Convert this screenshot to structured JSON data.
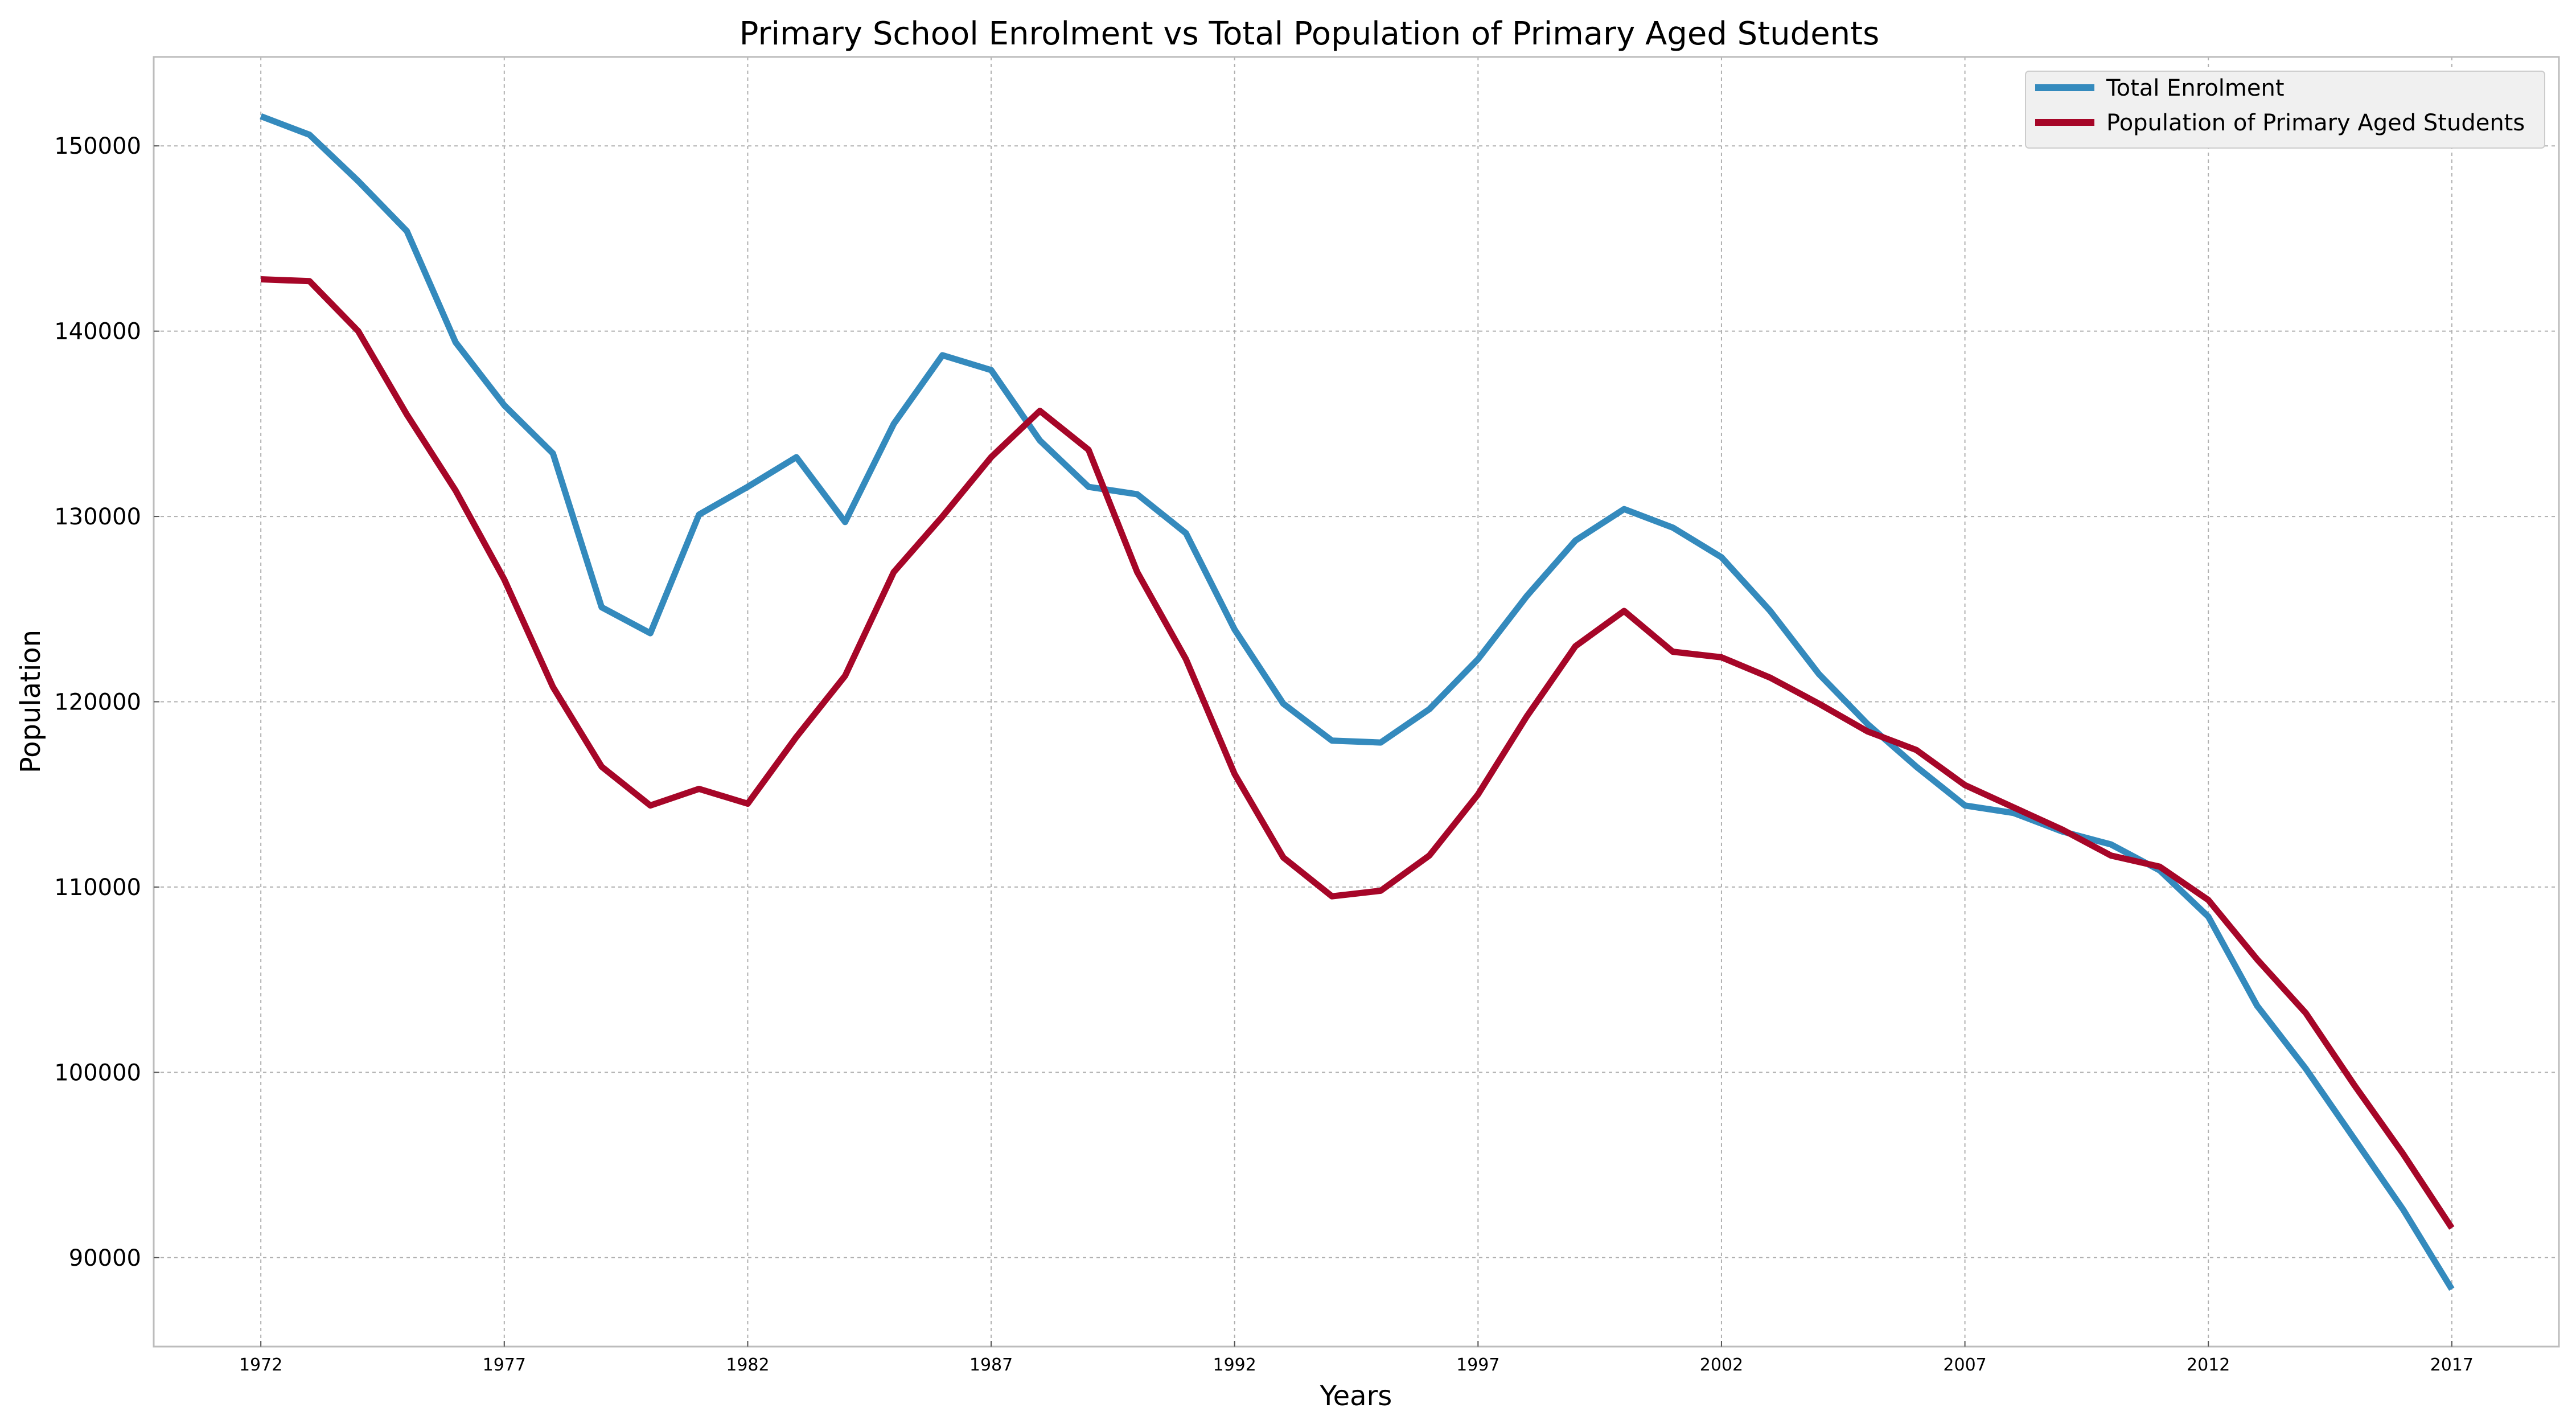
{
  "chart_data": {
    "type": "line",
    "title": "Primary School Enrolment vs Total Population of Primary Aged Students",
    "xlabel": "Years",
    "ylabel": "Population",
    "xlim": [
      1969.8,
      2019.2
    ],
    "ylim": [
      85200,
      154800
    ],
    "x_ticks": [
      "1972",
      "1977",
      "1982",
      "1987",
      "1992",
      "1997",
      "2002",
      "2007",
      "2012",
      "2017"
    ],
    "y_ticks": [
      "90000",
      "100000",
      "110000",
      "120000",
      "130000",
      "140000",
      "150000"
    ],
    "grid": true,
    "legend": "top-right",
    "x": [
      1972,
      1973,
      1974,
      1975,
      1976,
      1977,
      1978,
      1979,
      1980,
      1981,
      1982,
      1983,
      1984,
      1985,
      1986,
      1987,
      1988,
      1989,
      1990,
      1991,
      1992,
      1993,
      1994,
      1995,
      1996,
      1997,
      1998,
      1999,
      2000,
      2001,
      2002,
      2003,
      2004,
      2005,
      2006,
      2007,
      2008,
      2009,
      2010,
      2011,
      2012,
      2013,
      2014,
      2015,
      2016,
      2017
    ],
    "series": [
      {
        "name": "Total Enrolment",
        "color": "#348abd",
        "values": [
          151600,
          150600,
          148100,
          145400,
          139400,
          136000,
          133400,
          125100,
          123700,
          130100,
          131600,
          133200,
          129700,
          135000,
          138700,
          137900,
          134100,
          131600,
          131200,
          129100,
          123900,
          119900,
          117900,
          117800,
          119600,
          122300,
          125700,
          128700,
          130400,
          129400,
          127800,
          124900,
          121500,
          118800,
          116500,
          114400,
          114000,
          113000,
          112300,
          110900,
          108400,
          103600,
          100200,
          96400,
          92600,
          88300
        ],
        "legend_label": "Total Enrolment"
      },
      {
        "name": "Population of Primary Aged Students",
        "color": "#a60628",
        "values": [
          142800,
          142700,
          140000,
          135500,
          131400,
          126600,
          120800,
          116500,
          114400,
          115300,
          114500,
          118100,
          121400,
          127000,
          130000,
          133200,
          135700,
          133600,
          127000,
          122300,
          116100,
          111600,
          109500,
          109800,
          111700,
          115000,
          119200,
          123000,
          124900,
          122700,
          122400,
          121300,
          119900,
          118400,
          117400,
          115500,
          114300,
          113100,
          111700,
          111100,
          109300,
          106100,
          103200,
          99300,
          95600,
          91600
        ],
        "legend_label": "Population of Primary Aged Students"
      }
    ]
  }
}
